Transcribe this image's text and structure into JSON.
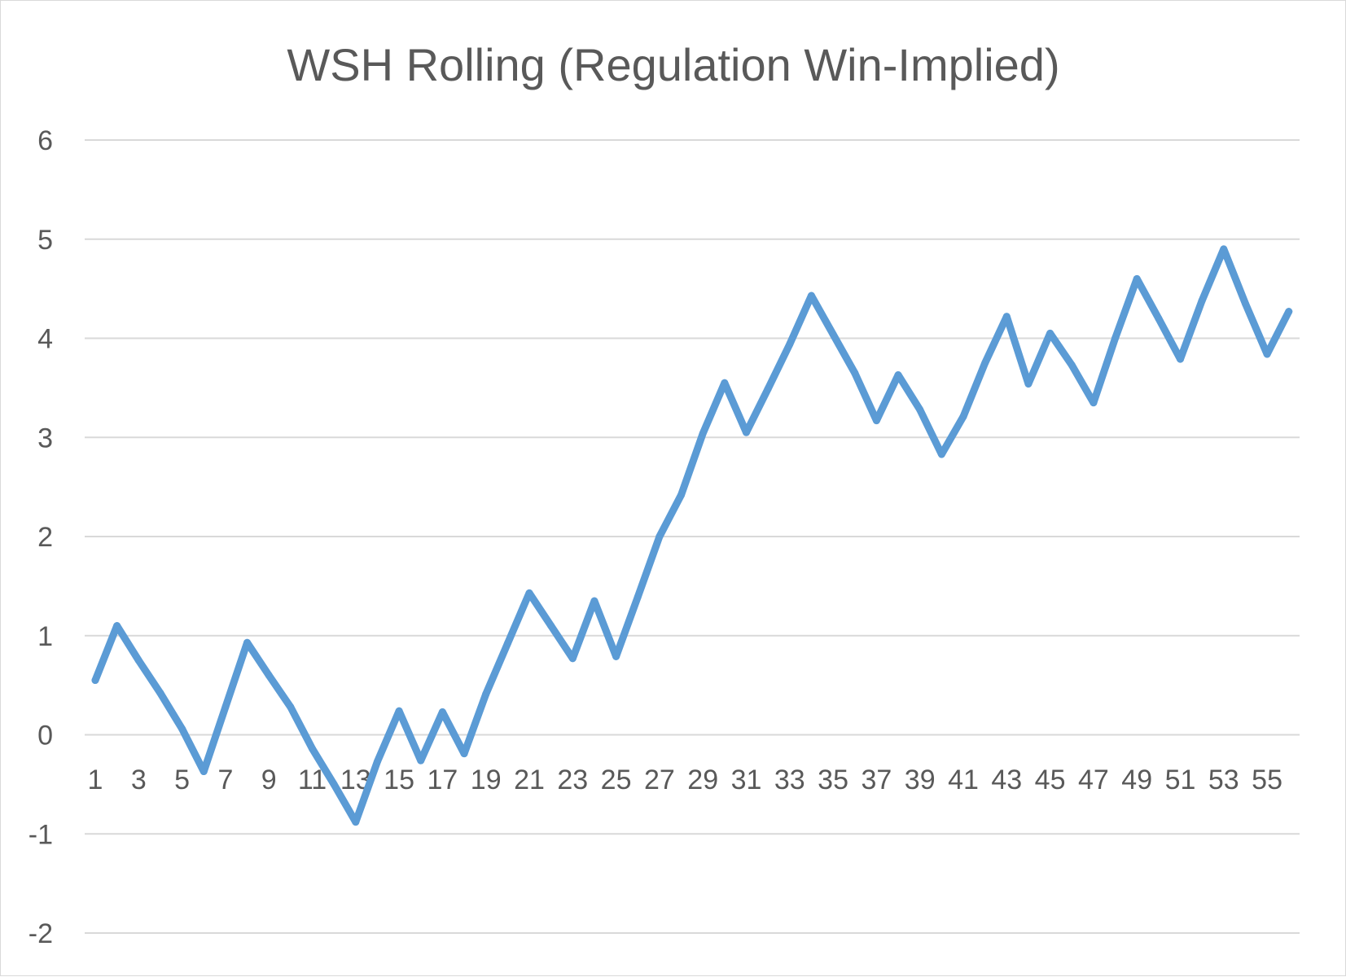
{
  "chart_data": {
    "type": "line",
    "title": "WSH Rolling (Regulation Win-Implied)",
    "xlabel": "",
    "ylabel": "",
    "ylim": [
      -2,
      6
    ],
    "yticks": [
      "-2",
      "-1",
      "0",
      "1",
      "2",
      "3",
      "4",
      "5",
      "6"
    ],
    "xticks": [
      "1",
      "3",
      "5",
      "7",
      "9",
      "11",
      "13",
      "15",
      "17",
      "19",
      "21",
      "23",
      "25",
      "27",
      "29",
      "31",
      "33",
      "35",
      "37",
      "39",
      "41",
      "43",
      "45",
      "47",
      "49",
      "51",
      "53",
      "55"
    ],
    "grid": true,
    "legend": "none",
    "line_color": "#5b9bd5",
    "series": [
      {
        "x": [
          1,
          2,
          3,
          4,
          5,
          6,
          7,
          8,
          9,
          10,
          11,
          12,
          13,
          14,
          15,
          16,
          17,
          18,
          19,
          20,
          21,
          22,
          23,
          24,
          25,
          26,
          27,
          28,
          29,
          30,
          31,
          32,
          33,
          34,
          35,
          36,
          37,
          38,
          39,
          40,
          41,
          42,
          43,
          44,
          45,
          46,
          47,
          48,
          49,
          50,
          51,
          52,
          53,
          54,
          55,
          56
        ],
        "values": [
          0.55,
          1.1,
          0.75,
          0.42,
          0.06,
          -0.37,
          0.28,
          0.93,
          0.6,
          0.28,
          -0.14,
          -0.5,
          -0.88,
          -0.27,
          0.24,
          -0.26,
          0.23,
          -0.19,
          0.41,
          0.92,
          1.43,
          1.1,
          0.77,
          1.35,
          0.79,
          1.39,
          2.0,
          2.42,
          3.04,
          3.55,
          3.05,
          3.49,
          3.94,
          4.43,
          4.04,
          3.65,
          3.17,
          3.63,
          3.28,
          2.83,
          3.21,
          3.75,
          4.22,
          3.54,
          4.05,
          3.73,
          3.35,
          4.0,
          4.6,
          4.2,
          3.79,
          4.38,
          4.9,
          4.35,
          3.84,
          4.27
        ]
      }
    ]
  }
}
